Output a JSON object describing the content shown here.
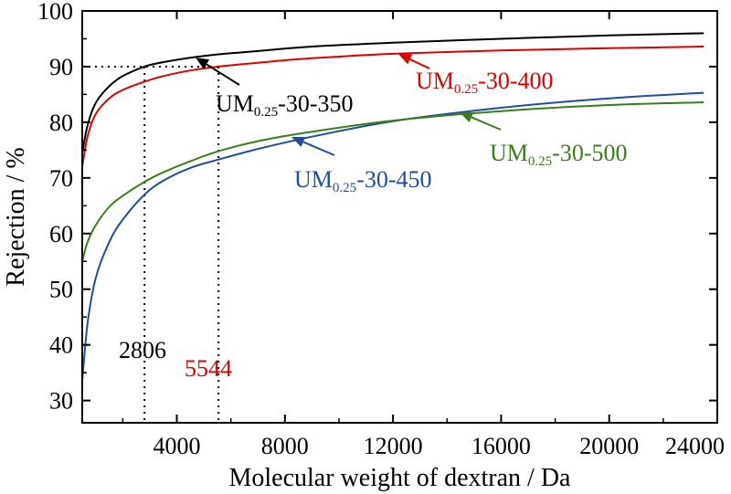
{
  "chart_data": {
    "type": "line",
    "xlabel": "Molecular weight of dextran / Da",
    "ylabel": "Rejection / %",
    "xlim": [
      500,
      24000
    ],
    "ylim": [
      26,
      100
    ],
    "xticks": [
      4000,
      8000,
      12000,
      16000,
      20000,
      24000
    ],
    "yticks": [
      30,
      40,
      50,
      60,
      70,
      80,
      90,
      100
    ],
    "grid": false,
    "series": [
      {
        "name": "UM0.25-30-350",
        "label_main": "UM",
        "label_sub": "0.25",
        "label_rest": "-30-350",
        "color": "#000000",
        "x": [
          500,
          700,
          1000,
          1500,
          2000,
          2806,
          3500,
          4500,
          5544,
          7000,
          9000,
          12000,
          16000,
          20000,
          23500
        ],
        "y": [
          74.5,
          79.5,
          83.5,
          86.5,
          88.3,
          90.0,
          90.8,
          91.6,
          92.2,
          92.8,
          93.6,
          94.3,
          95.0,
          95.6,
          96.0
        ]
      },
      {
        "name": "UM0.25-30-400",
        "label_main": "UM",
        "label_sub": "0.25",
        "label_rest": "-30-400",
        "color": "#dd0000",
        "x": [
          500,
          700,
          1000,
          1500,
          2000,
          2806,
          3500,
          4500,
          5544,
          7000,
          9000,
          12000,
          16000,
          20000,
          23500
        ],
        "y": [
          72,
          77.5,
          81.5,
          84.3,
          85.8,
          87.3,
          88.3,
          89.3,
          90.0,
          90.7,
          91.5,
          92.3,
          92.9,
          93.3,
          93.6
        ]
      },
      {
        "name": "UM0.25-30-450",
        "label_main": "UM",
        "label_sub": "0.25",
        "label_rest": "-30-450",
        "color": "#1f4e9e",
        "x": [
          500,
          700,
          1000,
          1500,
          2000,
          2806,
          3500,
          4500,
          5544,
          7000,
          9000,
          12000,
          16000,
          20000,
          23500
        ],
        "y": [
          33.5,
          44,
          52,
          58.5,
          62.5,
          67.0,
          69.5,
          71.8,
          73.3,
          75.2,
          77.4,
          80.2,
          82.6,
          84.3,
          85.3
        ]
      },
      {
        "name": "UM0.25-30-500",
        "label_main": "UM",
        "label_sub": "0.25",
        "label_rest": "-30-500",
        "color": "#3a7d1a",
        "x": [
          500,
          700,
          1000,
          1500,
          2000,
          2806,
          3500,
          4500,
          5544,
          7000,
          9000,
          12000,
          16000,
          20000,
          23500
        ],
        "y": [
          55,
          58.5,
          61.5,
          64.8,
          66.8,
          69.3,
          71.0,
          73.0,
          74.8,
          76.6,
          78.3,
          80.3,
          82.0,
          83.1,
          83.6
        ]
      }
    ],
    "annotations": [
      {
        "text": "2806",
        "color": "#000000",
        "x": 2806
      },
      {
        "text": "5544",
        "color": "#dd0000",
        "x": 5544
      }
    ],
    "reference_line_y": 90
  }
}
